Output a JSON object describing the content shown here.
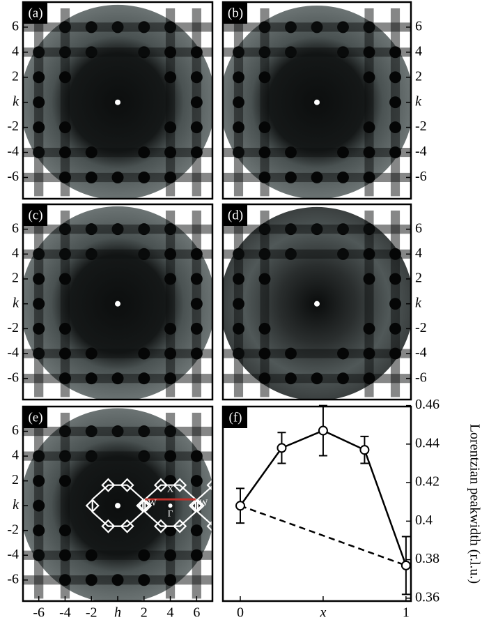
{
  "chart_data": [
    {
      "type": "map",
      "label": "(a)",
      "xlim": [
        -7.2,
        7.2
      ],
      "ylim": [
        -7.7,
        8.0
      ],
      "yaxis": "left",
      "yticks": [
        6,
        4,
        2,
        {
          "value": 0,
          "label": "k"
        },
        -2,
        -4,
        -6
      ]
    },
    {
      "type": "map",
      "label": "(b)",
      "xlim": [
        -7.2,
        7.2
      ],
      "ylim": [
        -7.7,
        8.0
      ],
      "yaxis": "right",
      "yticks": [
        6,
        4,
        2,
        {
          "value": 0,
          "label": "k"
        },
        -2,
        -4,
        -6
      ]
    },
    {
      "type": "map",
      "label": "(c)",
      "xlim": [
        -7.2,
        7.2
      ],
      "ylim": [
        -7.7,
        8.0
      ],
      "yaxis": "left",
      "yticks": [
        6,
        4,
        2,
        {
          "value": 0,
          "label": "k"
        },
        -2,
        -4,
        -6
      ]
    },
    {
      "type": "map",
      "label": "(d)",
      "xlim": [
        -7.2,
        7.2
      ],
      "ylim": [
        -7.7,
        8.0
      ],
      "yaxis": "right",
      "yticks": [
        6,
        4,
        2,
        {
          "value": 0,
          "label": "k"
        },
        -2,
        -4,
        -6
      ]
    },
    {
      "type": "map",
      "label": "(e)",
      "xlim": [
        -7.2,
        7.2
      ],
      "ylim": [
        -7.7,
        8.0
      ],
      "yaxis": "left",
      "yticks": [
        6,
        4,
        2,
        {
          "value": 0,
          "label": "k"
        },
        -2,
        -4,
        -6
      ],
      "xticks": [
        -6,
        -4,
        -2,
        {
          "value": 0,
          "label": "h"
        },
        2,
        4,
        6
      ],
      "annotations": [
        "X",
        "W",
        "W",
        "Γ"
      ]
    },
    {
      "type": "line",
      "label": "(f)",
      "ylabel": "Lorentzian peakwidth (r.l.u.)",
      "yaxis": "right",
      "xlim": [
        -0.105,
        1.03
      ],
      "ylim": [
        0.3585,
        0.4595
      ],
      "xticks": [
        0,
        {
          "value": 0.5,
          "label": "x"
        },
        1
      ],
      "yticks": [
        0.46,
        0.44,
        0.42,
        0.4,
        0.38,
        0.36
      ],
      "series": [
        {
          "color": "#000000",
          "style": "solid",
          "x": [
            0,
            0.25,
            0.5,
            0.75,
            1
          ],
          "values": [
            0.408,
            0.438,
            0.447,
            0.437,
            0.377
          ],
          "errors": [
            0.009,
            0.008,
            0.013,
            0.007,
            0.015
          ]
        },
        {
          "color": "#000000",
          "style": "dashed",
          "x": [
            0,
            1
          ],
          "values": [
            0.408,
            0.377
          ]
        }
      ]
    }
  ]
}
